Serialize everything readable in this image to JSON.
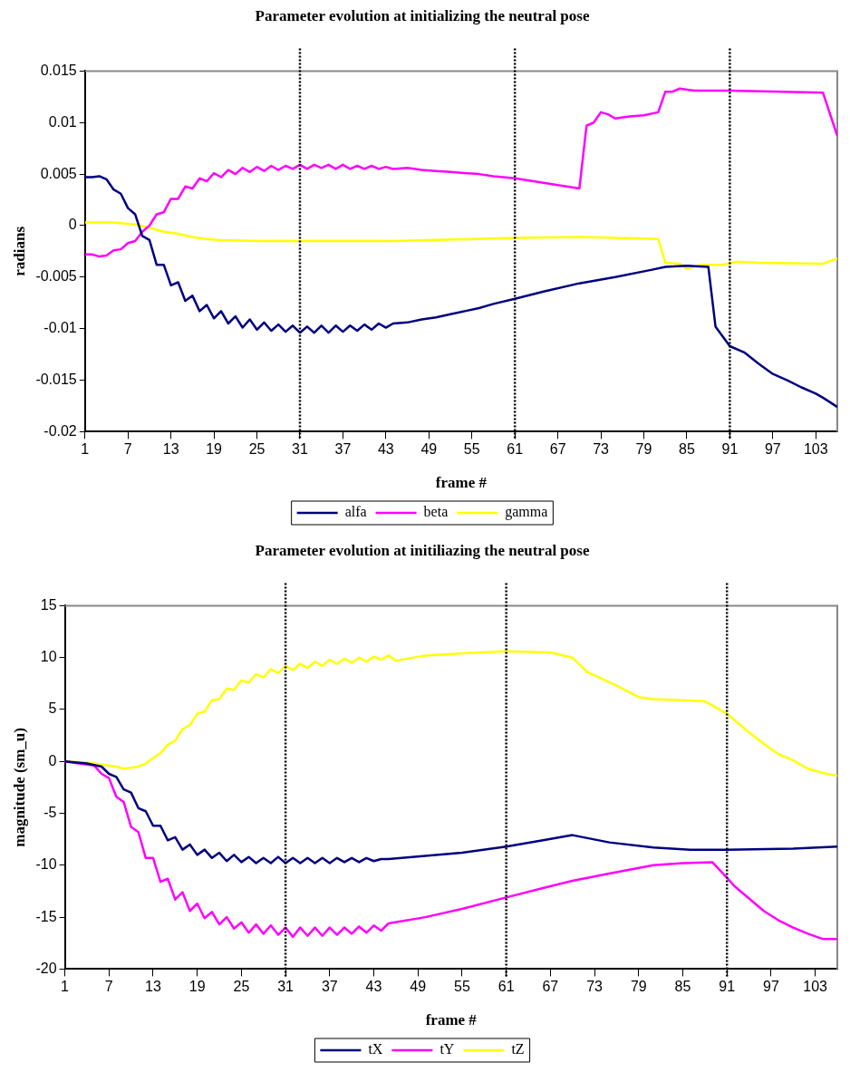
{
  "chart_data": [
    {
      "type": "line",
      "title": "Parameter evolution at initializing the neutral pose",
      "xlabel": "frame #",
      "ylabel": "radians",
      "xlim": [
        1,
        106
      ],
      "xticks": [
        1,
        7,
        13,
        19,
        25,
        31,
        37,
        43,
        49,
        55,
        61,
        67,
        73,
        79,
        85,
        91,
        97,
        103
      ],
      "ylim": [
        -0.02,
        0.015
      ],
      "yticks": [
        -0.02,
        -0.015,
        -0.01,
        -0.005,
        0,
        0.005,
        0.01,
        0.015
      ],
      "grid": false,
      "legend": "bottom",
      "marker": "none",
      "line_style": "solid",
      "ref_lines": [
        {
          "axis": "x",
          "value": 31,
          "color": "#000000",
          "line_style": "dotted"
        },
        {
          "axis": "x",
          "value": 61,
          "color": "#000000",
          "line_style": "dotted"
        },
        {
          "axis": "x",
          "value": 91,
          "color": "#000000",
          "line_style": "dotted"
        }
      ],
      "series": [
        {
          "name": "alfa",
          "color": "#000080",
          "x": [
            1,
            2,
            3,
            4,
            5,
            6,
            7,
            8,
            9,
            10,
            11,
            12,
            13,
            14,
            15,
            16,
            17,
            18,
            19,
            20,
            21,
            22,
            23,
            24,
            25,
            26,
            27,
            28,
            29,
            30,
            31,
            32,
            33,
            34,
            35,
            36,
            37,
            38,
            39,
            40,
            41,
            42,
            43,
            44,
            46,
            48,
            50,
            52,
            54,
            56,
            58,
            61,
            65,
            70,
            75,
            80,
            82,
            85,
            88,
            89,
            91,
            93,
            95,
            97,
            99,
            101,
            103,
            104,
            106
          ],
          "values": [
            0.0047,
            0.0047,
            0.0048,
            0.0045,
            0.0035,
            0.0031,
            0.0017,
            0.0011,
            -0.001,
            -0.0014,
            -0.0038,
            -0.0038,
            -0.0058,
            -0.0055,
            -0.0073,
            -0.0068,
            -0.0083,
            -0.0077,
            -0.009,
            -0.0083,
            -0.0095,
            -0.0088,
            -0.0099,
            -0.0091,
            -0.0101,
            -0.0094,
            -0.0102,
            -0.0096,
            -0.0103,
            -0.0097,
            -0.0104,
            -0.0098,
            -0.0104,
            -0.0097,
            -0.0104,
            -0.0097,
            -0.0103,
            -0.0097,
            -0.0102,
            -0.0096,
            -0.0101,
            -0.0095,
            -0.0099,
            -0.0095,
            -0.0094,
            -0.0091,
            -0.0089,
            -0.0086,
            -0.0083,
            -0.008,
            -0.0076,
            -0.0071,
            -0.0064,
            -0.0056,
            -0.005,
            -0.0043,
            -0.004,
            -0.0039,
            -0.004,
            -0.0098,
            -0.0117,
            -0.0123,
            -0.0134,
            -0.0144,
            -0.015,
            -0.0157,
            -0.0163,
            -0.0167,
            -0.0176
          ]
        },
        {
          "name": "beta",
          "color": "#ff00ff",
          "x": [
            1,
            2,
            3,
            4,
            5,
            6,
            7,
            8,
            9,
            10,
            11,
            12,
            13,
            14,
            15,
            16,
            17,
            18,
            19,
            20,
            21,
            22,
            23,
            24,
            25,
            26,
            27,
            28,
            29,
            30,
            31,
            32,
            33,
            34,
            35,
            36,
            37,
            38,
            39,
            40,
            41,
            42,
            43,
            44,
            46,
            48,
            50,
            52,
            54,
            56,
            58,
            61,
            70,
            71,
            72,
            73,
            74,
            75,
            77,
            79,
            81,
            82,
            83,
            84,
            86,
            91,
            104,
            106
          ],
          "values": [
            -0.0028,
            -0.0028,
            -0.003,
            -0.0029,
            -0.0024,
            -0.0023,
            -0.0017,
            -0.0015,
            -0.0006,
            0,
            0.0011,
            0.0013,
            0.0026,
            0.0026,
            0.0038,
            0.0036,
            0.0046,
            0.0043,
            0.0051,
            0.0047,
            0.0054,
            0.005,
            0.0056,
            0.0052,
            0.0057,
            0.0053,
            0.0058,
            0.0054,
            0.0058,
            0.0055,
            0.0059,
            0.0055,
            0.0059,
            0.0056,
            0.0059,
            0.0055,
            0.0059,
            0.0055,
            0.0058,
            0.0055,
            0.0058,
            0.0055,
            0.0057,
            0.0055,
            0.0056,
            0.0054,
            0.0053,
            0.0052,
            0.0051,
            0.005,
            0.0048,
            0.0046,
            0.0036,
            0.0097,
            0.01,
            0.011,
            0.0108,
            0.0104,
            0.0106,
            0.0107,
            0.011,
            0.013,
            0.013,
            0.0133,
            0.0131,
            0.0131,
            0.0129,
            0.0087
          ]
        },
        {
          "name": "gamma",
          "color": "#ffff00",
          "x": [
            1,
            5,
            8,
            10,
            12,
            14,
            16,
            18,
            20,
            25,
            31,
            44,
            61,
            70,
            81,
            82,
            84,
            85,
            87,
            90,
            92,
            95,
            104,
            106
          ],
          "values": [
            0.0003,
            0.0003,
            0.0001,
            -0.0002,
            -0.0006,
            -0.0008,
            -0.0011,
            -0.0013,
            -0.0014,
            -0.0015,
            -0.0015,
            -0.0015,
            -0.0012,
            -0.0011,
            -0.0013,
            -0.0036,
            -0.0037,
            -0.0042,
            -0.0038,
            -0.0038,
            -0.0035,
            -0.0036,
            -0.0037,
            -0.0032
          ]
        }
      ]
    },
    {
      "type": "line",
      "title": "Parameter evolution at initiliazing the neutral pose",
      "xlabel": "frame #",
      "ylabel": "magnitude (sm_u)",
      "xlim": [
        1,
        106
      ],
      "xticks": [
        1,
        7,
        13,
        19,
        25,
        31,
        37,
        43,
        49,
        55,
        61,
        67,
        73,
        79,
        85,
        91,
        97,
        103
      ],
      "ylim": [
        -20,
        15
      ],
      "yticks": [
        -20,
        -15,
        -10,
        -5,
        0,
        5,
        10,
        15
      ],
      "grid": false,
      "legend": "bottom",
      "marker": "none",
      "line_style": "solid",
      "ref_lines": [
        {
          "axis": "x",
          "value": 31,
          "color": "#000000",
          "line_style": "dotted"
        },
        {
          "axis": "x",
          "value": 61,
          "color": "#000000",
          "line_style": "dotted"
        },
        {
          "axis": "x",
          "value": 91,
          "color": "#000000",
          "line_style": "dotted"
        }
      ],
      "series": [
        {
          "name": "tX",
          "color": "#000080",
          "x": [
            1,
            4,
            6,
            7,
            8,
            9,
            10,
            11,
            12,
            13,
            14,
            15,
            16,
            17,
            18,
            19,
            20,
            21,
            22,
            23,
            24,
            25,
            26,
            27,
            28,
            29,
            30,
            31,
            32,
            33,
            34,
            35,
            36,
            37,
            38,
            39,
            40,
            41,
            42,
            43,
            44,
            45,
            50,
            55,
            61,
            66,
            70,
            75,
            81,
            86,
            91,
            100,
            106
          ],
          "values": [
            0,
            -0.2,
            -0.5,
            -1.2,
            -1.5,
            -2.7,
            -3,
            -4.5,
            -4.8,
            -6.2,
            -6.2,
            -7.6,
            -7.3,
            -8.5,
            -8,
            -9,
            -8.5,
            -9.3,
            -8.8,
            -9.6,
            -9,
            -9.7,
            -9.2,
            -9.8,
            -9.3,
            -9.8,
            -9.2,
            -9.8,
            -9.3,
            -9.8,
            -9.3,
            -9.8,
            -9.3,
            -9.8,
            -9.3,
            -9.7,
            -9.3,
            -9.7,
            -9.3,
            -9.6,
            -9.4,
            -9.4,
            -9.1,
            -8.8,
            -8.2,
            -7.6,
            -7.1,
            -7.8,
            -8.3,
            -8.5,
            -8.5,
            -8.4,
            -8.2
          ]
        },
        {
          "name": "tY",
          "color": "#ff00ff",
          "x": [
            1,
            4,
            5,
            6,
            7,
            8,
            9,
            10,
            11,
            12,
            13,
            14,
            15,
            16,
            17,
            18,
            19,
            20,
            21,
            22,
            23,
            24,
            25,
            26,
            27,
            28,
            29,
            30,
            31,
            32,
            33,
            34,
            35,
            36,
            37,
            38,
            39,
            40,
            41,
            42,
            43,
            44,
            45,
            50,
            55,
            61,
            66,
            70,
            75,
            81,
            85,
            89,
            91,
            92,
            94,
            96,
            98,
            100,
            102,
            104,
            106
          ],
          "values": [
            0,
            -0.3,
            -0.4,
            -1.2,
            -1.6,
            -3.4,
            -3.9,
            -6.3,
            -6.8,
            -9.3,
            -9.3,
            -11.6,
            -11.3,
            -13.3,
            -12.6,
            -14.4,
            -13.7,
            -15.1,
            -14.5,
            -15.7,
            -15,
            -16.1,
            -15.5,
            -16.5,
            -15.7,
            -16.6,
            -15.8,
            -16.7,
            -16,
            -16.9,
            -16,
            -16.8,
            -16,
            -16.8,
            -16,
            -16.7,
            -16,
            -16.6,
            -15.9,
            -16.5,
            -15.8,
            -16.3,
            -15.6,
            -15,
            -14.2,
            -13.1,
            -12.2,
            -11.5,
            -10.8,
            -10,
            -9.8,
            -9.7,
            -11.2,
            -12,
            -13.2,
            -14.4,
            -15.3,
            -16,
            -16.6,
            -17.1,
            -17.1
          ]
        },
        {
          "name": "tZ",
          "color": "#ffff00",
          "x": [
            1,
            4,
            6,
            8,
            9,
            10,
            11,
            12,
            13,
            14,
            15,
            16,
            17,
            18,
            19,
            20,
            21,
            22,
            23,
            24,
            25,
            26,
            27,
            28,
            29,
            30,
            31,
            32,
            33,
            34,
            35,
            36,
            37,
            38,
            39,
            40,
            41,
            42,
            43,
            44,
            45,
            46,
            50,
            55,
            61,
            67,
            70,
            72,
            76,
            79,
            81,
            88,
            91,
            94,
            96,
            98,
            100,
            102,
            104,
            106
          ],
          "values": [
            0,
            -0.1,
            -0.3,
            -0.5,
            -0.7,
            -0.6,
            -0.5,
            -0.2,
            0.3,
            0.8,
            1.6,
            2,
            3.1,
            3.5,
            4.6,
            4.8,
            5.9,
            6,
            7,
            6.9,
            7.8,
            7.6,
            8.4,
            8.1,
            8.9,
            8.5,
            9.2,
            8.8,
            9.4,
            9,
            9.6,
            9.2,
            9.8,
            9.4,
            9.9,
            9.5,
            10,
            9.6,
            10.1,
            9.8,
            10.2,
            9.7,
            10.2,
            10.4,
            10.6,
            10.5,
            10,
            8.6,
            7.3,
            6.2,
            6,
            5.8,
            4.6,
            2.8,
            1.7,
            0.7,
            0.1,
            -0.7,
            -1.1,
            -1.4
          ]
        }
      ]
    }
  ]
}
